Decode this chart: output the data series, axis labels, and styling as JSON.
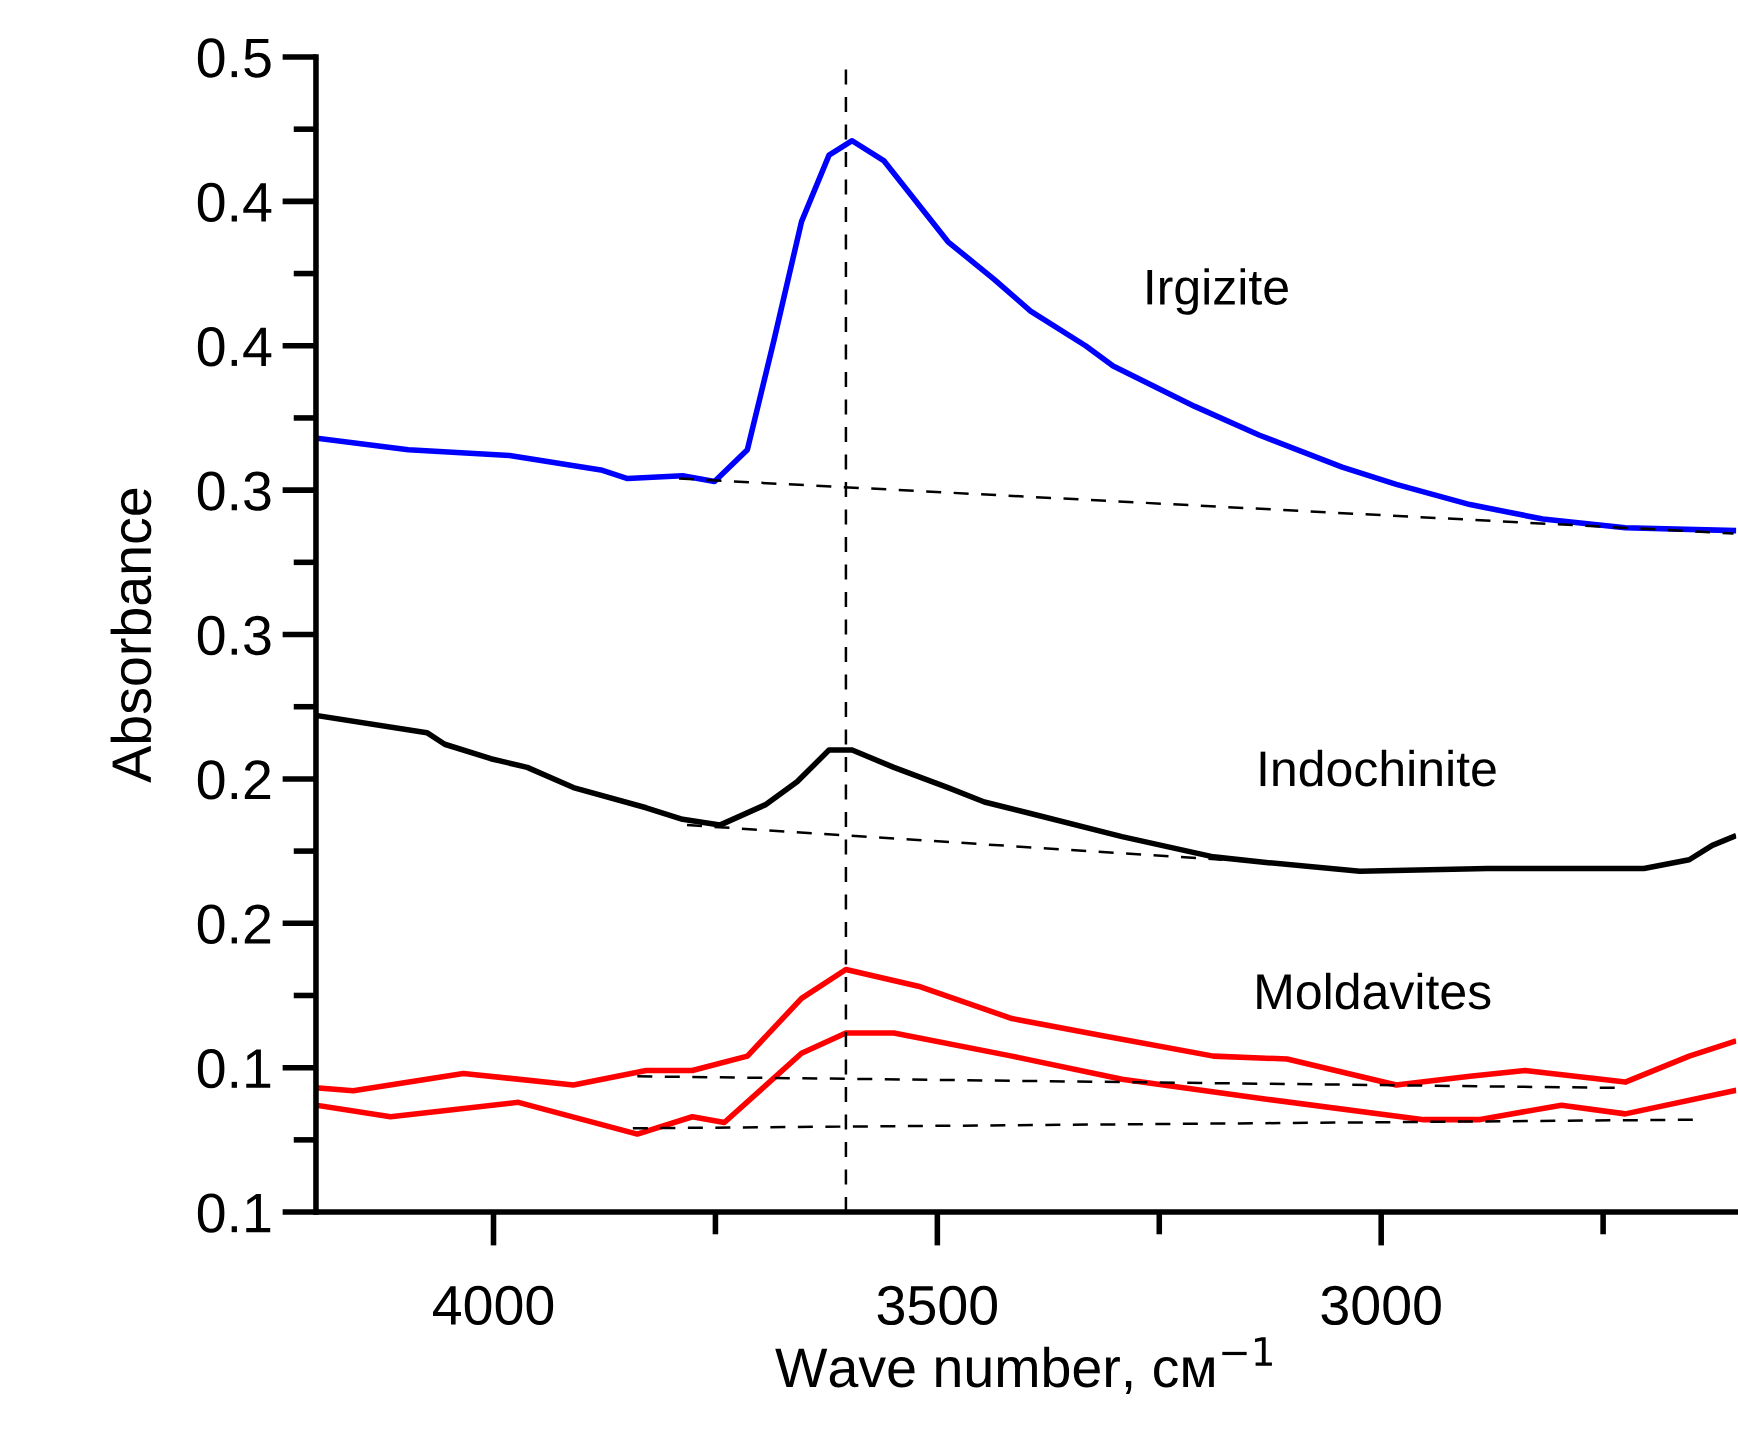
{
  "chart_data": {
    "type": "line",
    "xlabel": "Wave number, см$^{−1}$",
    "ylabel": "Absorbance",
    "xlim": [
      4200,
      2600
    ],
    "xticks": [
      4000,
      {
        "value": 3750,
        "label": null
      },
      3500,
      {
        "value": 3250,
        "label": null
      },
      3000,
      {
        "value": 2750,
        "label": null
      }
    ],
    "ylim": [
      0.1,
      0.5
    ],
    "yticks": [
      {
        "value": 0.1,
        "label": "0.1"
      },
      {
        "value": 0.125,
        "label": null
      },
      {
        "value": 0.15,
        "label": "0.1"
      },
      {
        "value": 0.175,
        "label": null
      },
      {
        "value": 0.2,
        "label": "0.2"
      },
      {
        "value": 0.225,
        "label": null
      },
      {
        "value": 0.25,
        "label": "0.2"
      },
      {
        "value": 0.275,
        "label": null
      },
      {
        "value": 0.3,
        "label": "0.3"
      },
      {
        "value": 0.325,
        "label": null
      },
      {
        "value": 0.35,
        "label": "0.3"
      },
      {
        "value": 0.375,
        "label": null
      },
      {
        "value": 0.4,
        "label": "0.4"
      },
      {
        "value": 0.425,
        "label": null
      },
      {
        "value": 0.45,
        "label": "0.4"
      },
      {
        "value": 0.475,
        "label": null
      },
      {
        "value": 0.5,
        "label": "0.5"
      }
    ],
    "grid": false,
    "legend": false,
    "marker": "none",
    "series": [
      {
        "color": "#0000ff",
        "line_style": "solid",
        "x": [
          4199,
          4096,
          3982,
          3879,
          3849,
          3787,
          3751,
          3714,
          3684,
          3653,
          3622,
          3596,
          3560,
          3488,
          3436,
          3395,
          3333,
          3302,
          3210,
          3137,
          3044,
          2983,
          2900,
          2818,
          2725,
          2603
        ],
        "values": [
          0.368,
          0.364,
          0.362,
          0.357,
          0.354,
          0.355,
          0.353,
          0.364,
          0.402,
          0.443,
          0.466,
          0.471,
          0.464,
          0.436,
          0.423,
          0.412,
          0.4,
          0.393,
          0.379,
          0.369,
          0.358,
          0.352,
          0.345,
          0.34,
          0.337,
          0.336
        ]
      },
      {
        "color": "#000000",
        "line_style": "dashed",
        "x": [
          3791,
          2603
        ],
        "values": [
          0.354,
          0.335
        ]
      },
      {
        "color": "#000000",
        "line_style": "solid",
        "x": [
          4200,
          4075,
          4055,
          4003,
          3962,
          3910,
          3828,
          3787,
          3745,
          3694,
          3658,
          3622,
          3596,
          3549,
          3488,
          3447,
          3395,
          3292,
          3189,
          3127,
          3024,
          2880,
          2704,
          2653,
          2627,
          2603
        ],
        "values": [
          0.272,
          0.266,
          0.262,
          0.257,
          0.254,
          0.247,
          0.24,
          0.236,
          0.234,
          0.241,
          0.249,
          0.26,
          0.26,
          0.254,
          0.247,
          0.242,
          0.238,
          0.23,
          0.223,
          0.221,
          0.218,
          0.219,
          0.219,
          0.222,
          0.227,
          0.23
        ]
      },
      {
        "color": "#000000",
        "line_style": "dashed",
        "x": [
          3782,
          3179
        ],
        "values": [
          0.234,
          0.222
        ]
      },
      {
        "color": "#ff0000",
        "line_style": "solid",
        "x": [
          4200,
          4158,
          4034,
          3910,
          3828,
          3776,
          3714,
          3653,
          3603,
          3519,
          3416,
          3312,
          3189,
          3106,
          2983,
          2900,
          2838,
          2725,
          2653,
          2603
        ],
        "values": [
          0.143,
          0.142,
          0.148,
          0.144,
          0.149,
          0.149,
          0.154,
          0.174,
          0.184,
          0.178,
          0.167,
          0.161,
          0.154,
          0.153,
          0.144,
          0.147,
          0.149,
          0.145,
          0.154,
          0.159
        ]
      },
      {
        "color": "#ff0000",
        "line_style": "solid",
        "x": [
          4200,
          4116,
          3972,
          3838,
          3776,
          3740,
          3653,
          3603,
          3549,
          3416,
          3292,
          3127,
          2952,
          2890,
          2797,
          2725,
          2603
        ],
        "values": [
          0.137,
          0.133,
          0.138,
          0.127,
          0.133,
          0.131,
          0.155,
          0.162,
          0.162,
          0.154,
          0.146,
          0.139,
          0.132,
          0.132,
          0.137,
          0.134,
          0.142
        ]
      },
      {
        "color": "#000000",
        "line_style": "dashed",
        "x": [
          3838,
          2735
        ],
        "values": [
          0.147,
          0.143
        ]
      },
      {
        "color": "#000000",
        "line_style": "dashed",
        "x": [
          3843,
          2643
        ],
        "values": [
          0.129,
          0.132
        ]
      }
    ],
    "ref_lines": [
      {
        "axis": "x",
        "value": 3603,
        "color": "#000000",
        "line_style": "dashed"
      }
    ],
    "annotations": [
      "Irgizite",
      "Indochinite",
      "Moldavites"
    ]
  }
}
